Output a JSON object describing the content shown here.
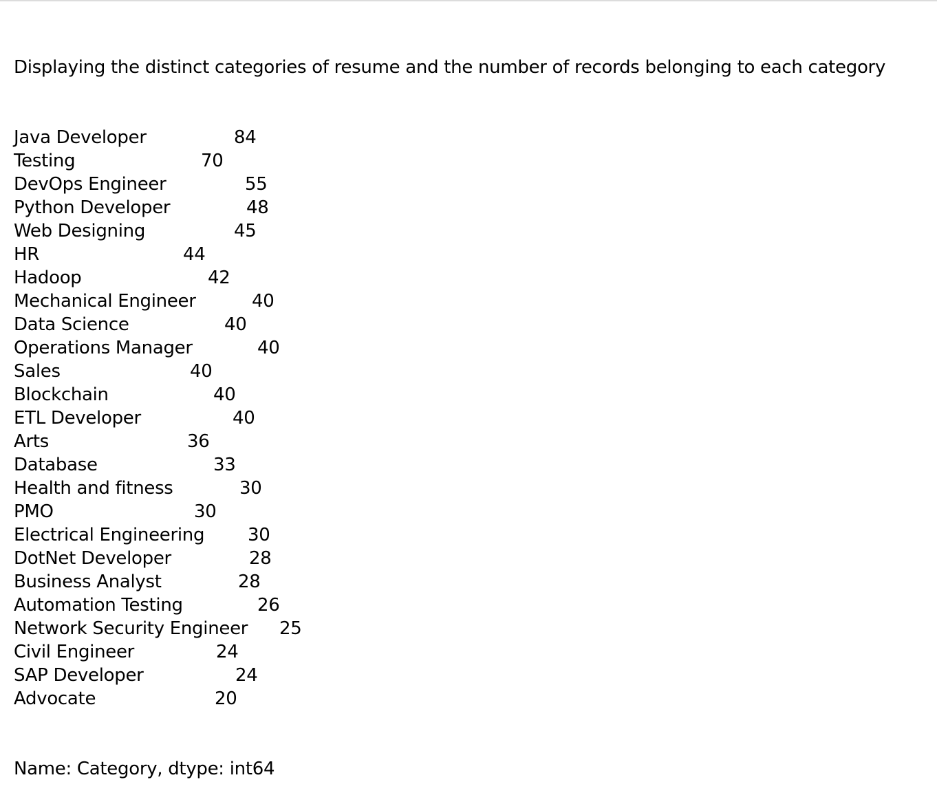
{
  "output": {
    "heading": "Displaying the distinct categories of resume and the number of records belonging to each category",
    "rows": [
      {
        "category": "Java Developer",
        "count": "84"
      },
      {
        "category": "Testing",
        "count": "70"
      },
      {
        "category": "DevOps Engineer",
        "count": "55"
      },
      {
        "category": "Python Developer",
        "count": "48"
      },
      {
        "category": "Web Designing",
        "count": "45"
      },
      {
        "category": "HR",
        "count": "44"
      },
      {
        "category": "Hadoop",
        "count": "42"
      },
      {
        "category": "Mechanical Engineer",
        "count": "40"
      },
      {
        "category": "Data Science",
        "count": "40"
      },
      {
        "category": "Operations Manager",
        "count": "40"
      },
      {
        "category": "Sales",
        "count": "40"
      },
      {
        "category": "Blockchain",
        "count": "40"
      },
      {
        "category": "ETL Developer",
        "count": "40"
      },
      {
        "category": "Arts",
        "count": "36"
      },
      {
        "category": "Database",
        "count": "33"
      },
      {
        "category": "Health and fitness",
        "count": "30"
      },
      {
        "category": "PMO",
        "count": "30"
      },
      {
        "category": "Electrical Engineering",
        "count": "30"
      },
      {
        "category": "DotNet Developer",
        "count": "28"
      },
      {
        "category": "Business Analyst",
        "count": "28"
      },
      {
        "category": "Automation Testing",
        "count": "26"
      },
      {
        "category": "Network Security Engineer",
        "count": "25"
      },
      {
        "category": "Civil Engineer",
        "count": "24"
      },
      {
        "category": "SAP Developer",
        "count": "24"
      },
      {
        "category": "Advocate",
        "count": "20"
      }
    ],
    "footer": "Name: Category, dtype: int64"
  }
}
